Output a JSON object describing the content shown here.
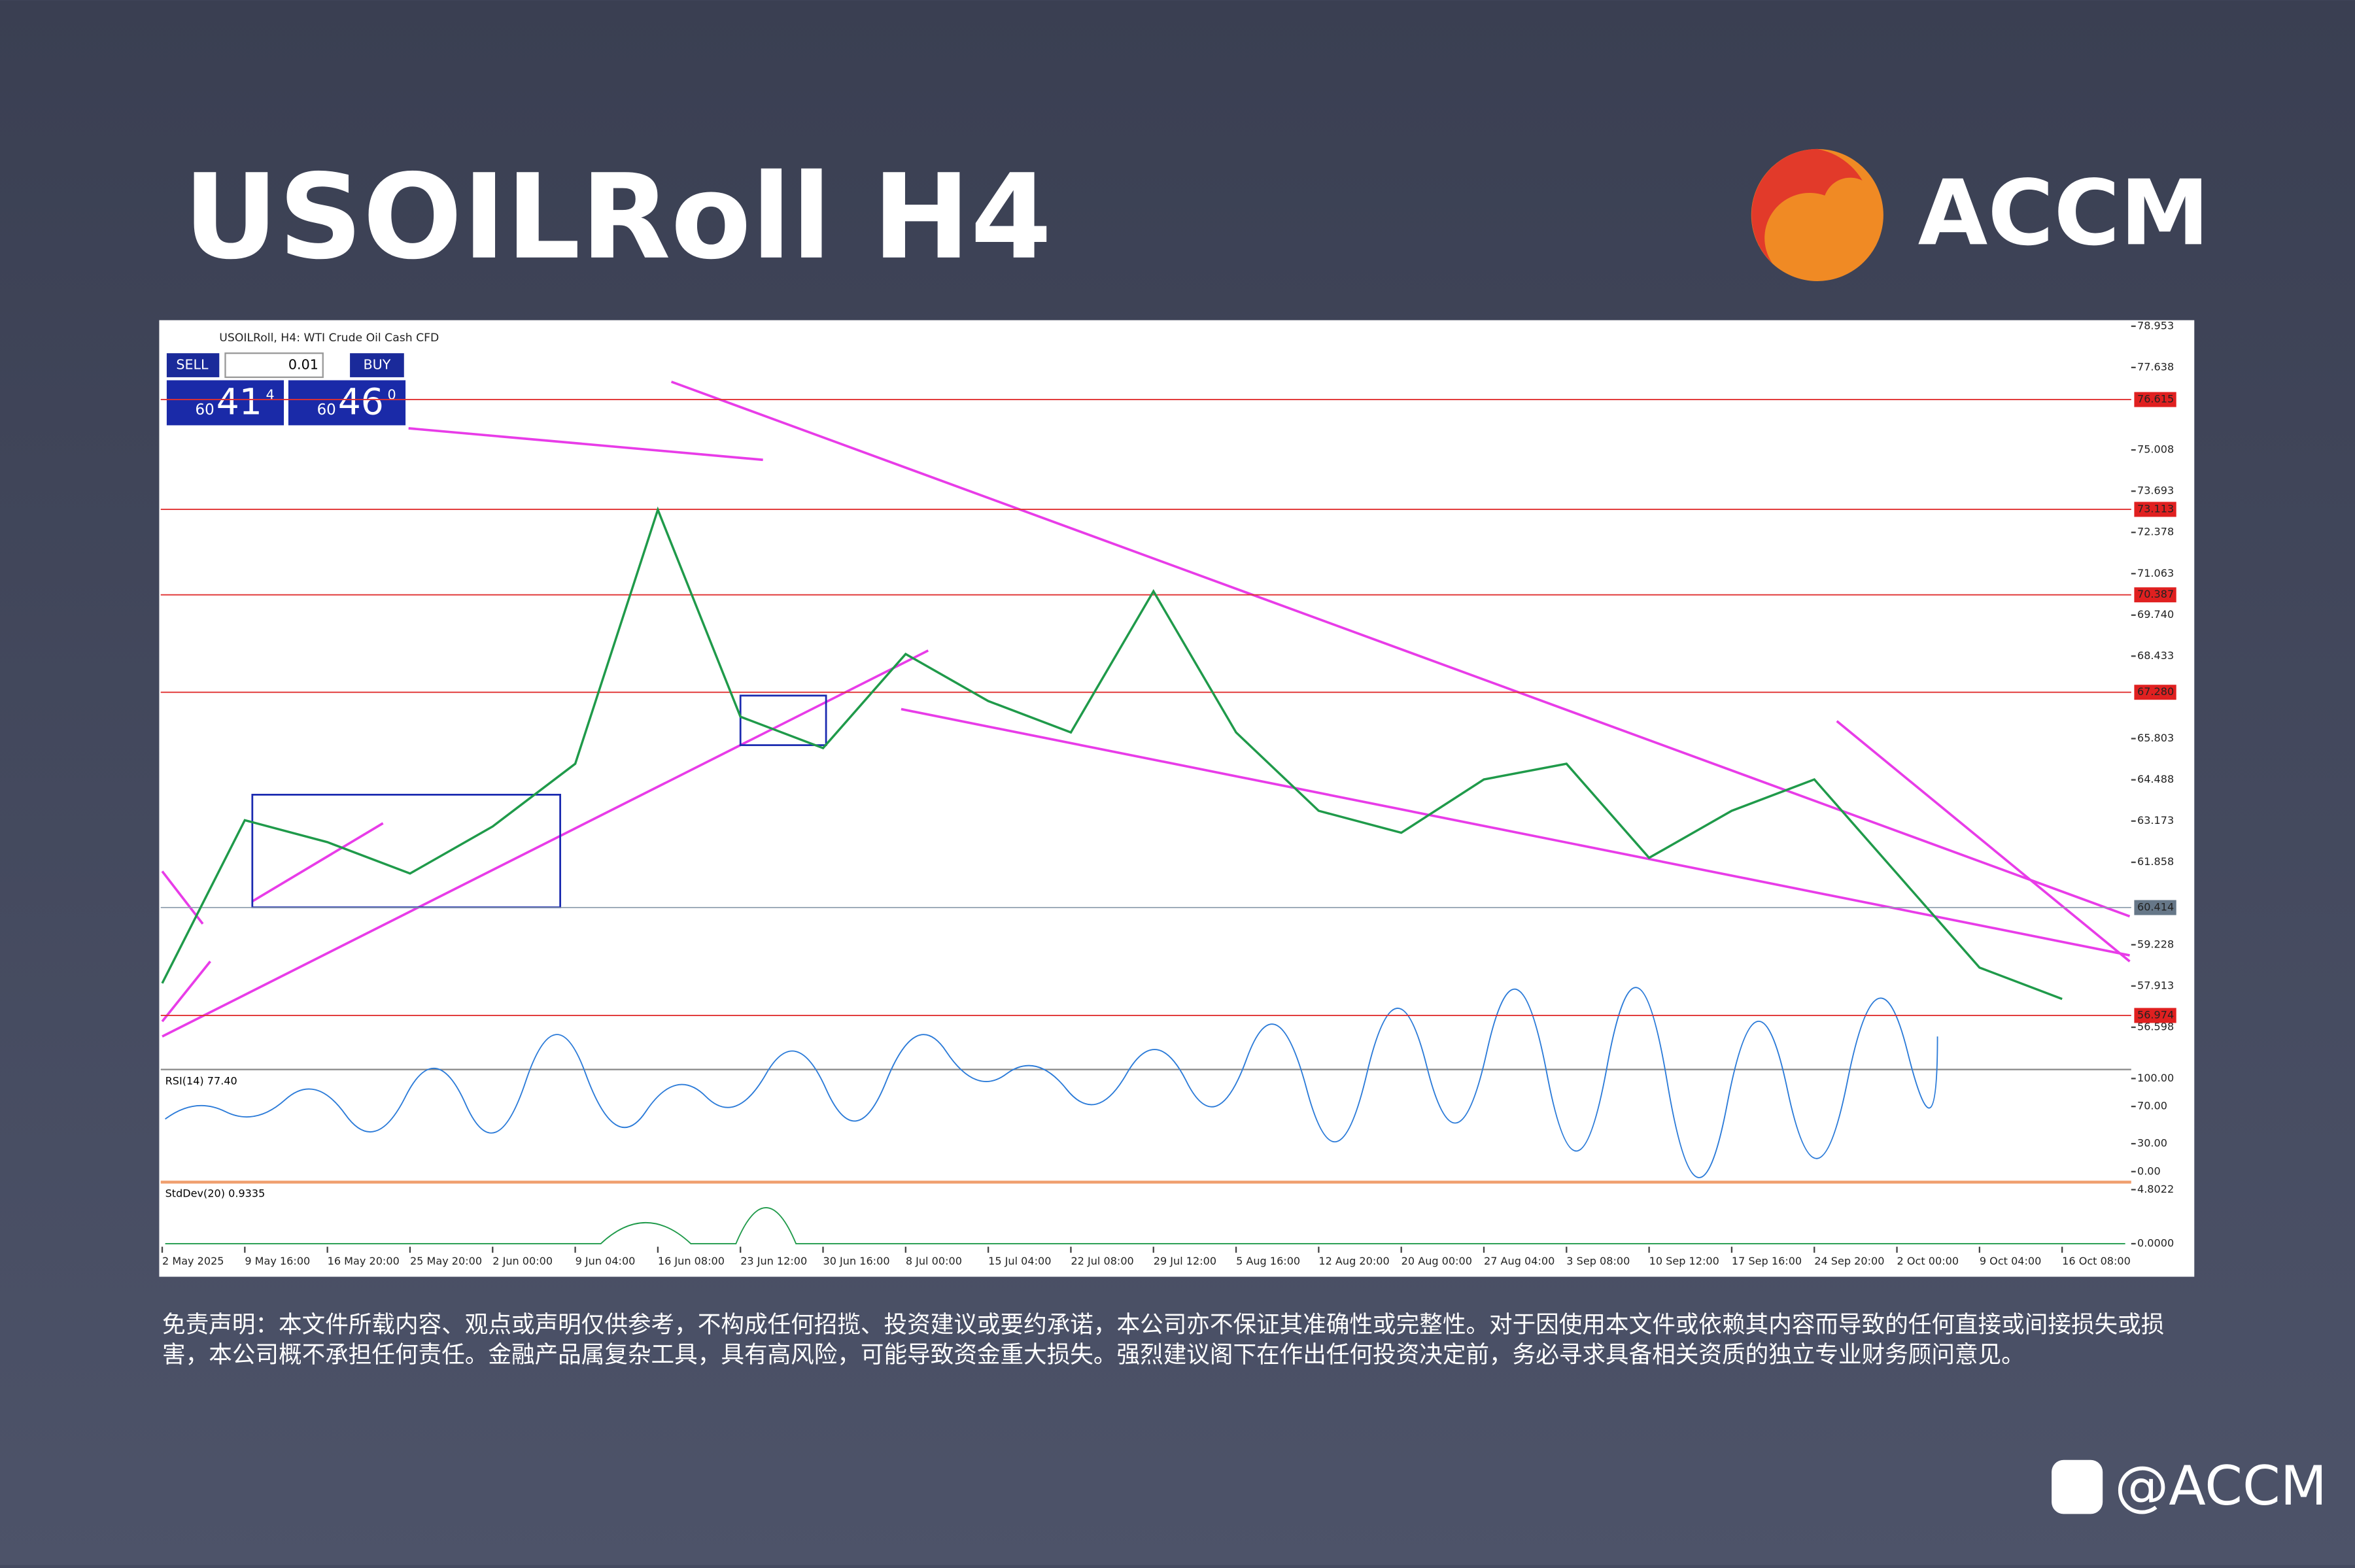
{
  "header": {
    "title": "USOILRoll H4",
    "brand": "ACCM"
  },
  "window_title": "USOILRoll, H4: WTI Crude Oil Cash CFD",
  "trade_panel": {
    "sell": "SELL",
    "buy": "BUY",
    "lot": "0.01",
    "bid_prefix": "60",
    "bid_big": "41",
    "bid_small": "4",
    "ask_prefix": "60",
    "ask_big": "46",
    "ask_small": "0"
  },
  "chart_data": {
    "type": "line",
    "color": "#1f9a4a",
    "categories": [
      "2 May 2025",
      "9 May 16:00",
      "16 May 20:00",
      "25 May 20:00",
      "2 Jun 00:00",
      "9 Jun 04:00",
      "16 Jun 08:00",
      "23 Jun 12:00",
      "30 Jun 16:00",
      "8 Jul 00:00",
      "15 Jul 04:00",
      "22 Jul 08:00",
      "29 Jul 12:00",
      "5 Aug 16:00",
      "12 Aug 20:00",
      "20 Aug 00:00",
      "27 Aug 04:00",
      "3 Sep 08:00",
      "10 Sep 12:00",
      "17 Sep 16:00",
      "24 Sep 20:00",
      "2 Oct 00:00",
      "9 Oct 04:00",
      "16 Oct 08:00"
    ],
    "values": [
      58,
      63.2,
      62.5,
      61.5,
      63,
      65,
      73.1,
      66.5,
      65.5,
      68.5,
      67,
      66,
      70.5,
      66,
      63.5,
      62.8,
      64.5,
      65,
      62,
      63.5,
      64.5,
      61.5,
      58.5,
      57.5
    ],
    "ylim": [
      55.25,
      79.05
    ],
    "yticks": [
      78.953,
      77.638,
      75.008,
      73.693,
      72.378,
      71.063,
      {
        "value": 69.74,
        "label": "69.740"
      },
      68.433,
      65.803,
      64.488,
      63.173,
      61.858,
      59.228,
      57.913,
      56.598
    ],
    "levels": [
      76.615,
      73.113,
      70.387,
      {
        "value": 67.28,
        "label": "67.280"
      },
      56.974
    ],
    "current_price": 60.414
  },
  "rsi": {
    "label": "RSI(14) 77.40",
    "ylim": [
      0,
      100
    ],
    "yticks": [
      {
        "value": 100,
        "label": "100.00"
      },
      {
        "value": 70,
        "label": "70.00"
      },
      {
        "value": 30,
        "label": "30.00"
      },
      {
        "value": 0,
        "label": "0.00"
      }
    ]
  },
  "stddev": {
    "label": "StdDev(20) 0.9335",
    "ylim": [
      0,
      4.8022
    ],
    "yticks": [
      4.8022,
      {
        "value": 0,
        "label": "0.0000"
      }
    ]
  },
  "disclaimer": "免责声明：本文件所载内容、观点或声明仅供参考，不构成任何招揽、投资建议或要约承诺，本公司亦不保证其准确性或完整性。对于因使用本文件或依赖其内容而导致的任何直接或间接损失或损害，本公司概不承担任何责任。金融产品属复杂工具，具有高风险，可能导致资金重大损失。强烈建议阁下在作出任何投资决定前，务必寻求具备相关资质的独立专业财务顾问意见。",
  "social": "@ACCM"
}
